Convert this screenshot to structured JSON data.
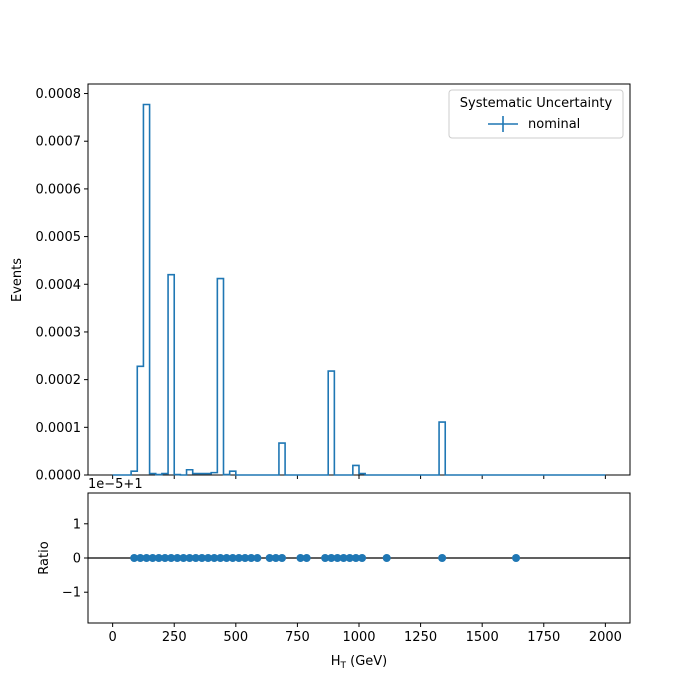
{
  "chart_data": [
    {
      "type": "histogram",
      "panel": "main",
      "ylabel": "Events",
      "xlim": [
        -100,
        2100
      ],
      "ylim": [
        0,
        0.00082
      ],
      "yticks": [
        "0.0000",
        "0.0001",
        "0.0002",
        "0.0003",
        "0.0004",
        "0.0005",
        "0.0006",
        "0.0007",
        "0.0008"
      ],
      "bin_width": 25,
      "x_start": 0,
      "x_end": 2000,
      "legend": {
        "title": "Systematic Uncertainty",
        "entries": [
          "nominal"
        ],
        "placement": "top-right"
      },
      "series": [
        {
          "name": "nominal",
          "color": "#1f77b4",
          "bins": [
            {
              "x": 75,
              "y": 8e-06
            },
            {
              "x": 100,
              "y": 0.000228
            },
            {
              "x": 125,
              "y": 0.000777
            },
            {
              "x": 150,
              "y": 3e-06
            },
            {
              "x": 175,
              "y": 1e-06
            },
            {
              "x": 200,
              "y": 3e-06
            },
            {
              "x": 225,
              "y": 0.00042
            },
            {
              "x": 250,
              "y": 1e-06
            },
            {
              "x": 300,
              "y": 1.1e-05
            },
            {
              "x": 325,
              "y": 3e-06
            },
            {
              "x": 350,
              "y": 3e-06
            },
            {
              "x": 375,
              "y": 3e-06
            },
            {
              "x": 400,
              "y": 5e-06
            },
            {
              "x": 425,
              "y": 0.000412
            },
            {
              "x": 450,
              "y": 1e-06
            },
            {
              "x": 475,
              "y": 8e-06
            },
            {
              "x": 675,
              "y": 6.7e-05
            },
            {
              "x": 875,
              "y": 0.000218
            },
            {
              "x": 975,
              "y": 2e-05
            },
            {
              "x": 1000,
              "y": 3e-06
            },
            {
              "x": 1325,
              "y": 0.000111
            }
          ]
        }
      ]
    },
    {
      "type": "scatter",
      "panel": "ratio",
      "ylabel": "Ratio",
      "xlabel": "H",
      "xlabel_sub": "T",
      "xlabel_unit": " (GeV)",
      "offset_text": "1e−5+1",
      "xlim": [
        -100,
        2100
      ],
      "ylim": [
        -1.9,
        1.9
      ],
      "yticks": [
        "−1",
        "0",
        "1"
      ],
      "xticks": [
        "0",
        "250",
        "500",
        "750",
        "1000",
        "1250",
        "1500",
        "1750",
        "2000"
      ],
      "reference_line": 0,
      "series": [
        {
          "name": "nominal",
          "color": "#1f77b4",
          "x": [
            87.5,
            112.5,
            137.5,
            162.5,
            187.5,
            212.5,
            237.5,
            262.5,
            287.5,
            312.5,
            337.5,
            362.5,
            387.5,
            412.5,
            437.5,
            462.5,
            487.5,
            512.5,
            537.5,
            562.5,
            587.5,
            637.5,
            662.5,
            687.5,
            762.5,
            787.5,
            862.5,
            887.5,
            912.5,
            937.5,
            962.5,
            987.5,
            1012.5,
            1112.5,
            1337.5,
            1637.5
          ],
          "y": [
            0,
            0,
            0,
            0,
            0,
            0,
            0,
            0,
            0,
            0,
            0,
            0,
            0,
            0,
            0,
            0,
            0,
            0,
            0,
            0,
            0,
            0,
            0,
            0,
            0,
            0,
            0,
            0,
            0,
            0,
            0,
            0,
            0,
            0,
            0,
            0
          ]
        }
      ]
    }
  ]
}
